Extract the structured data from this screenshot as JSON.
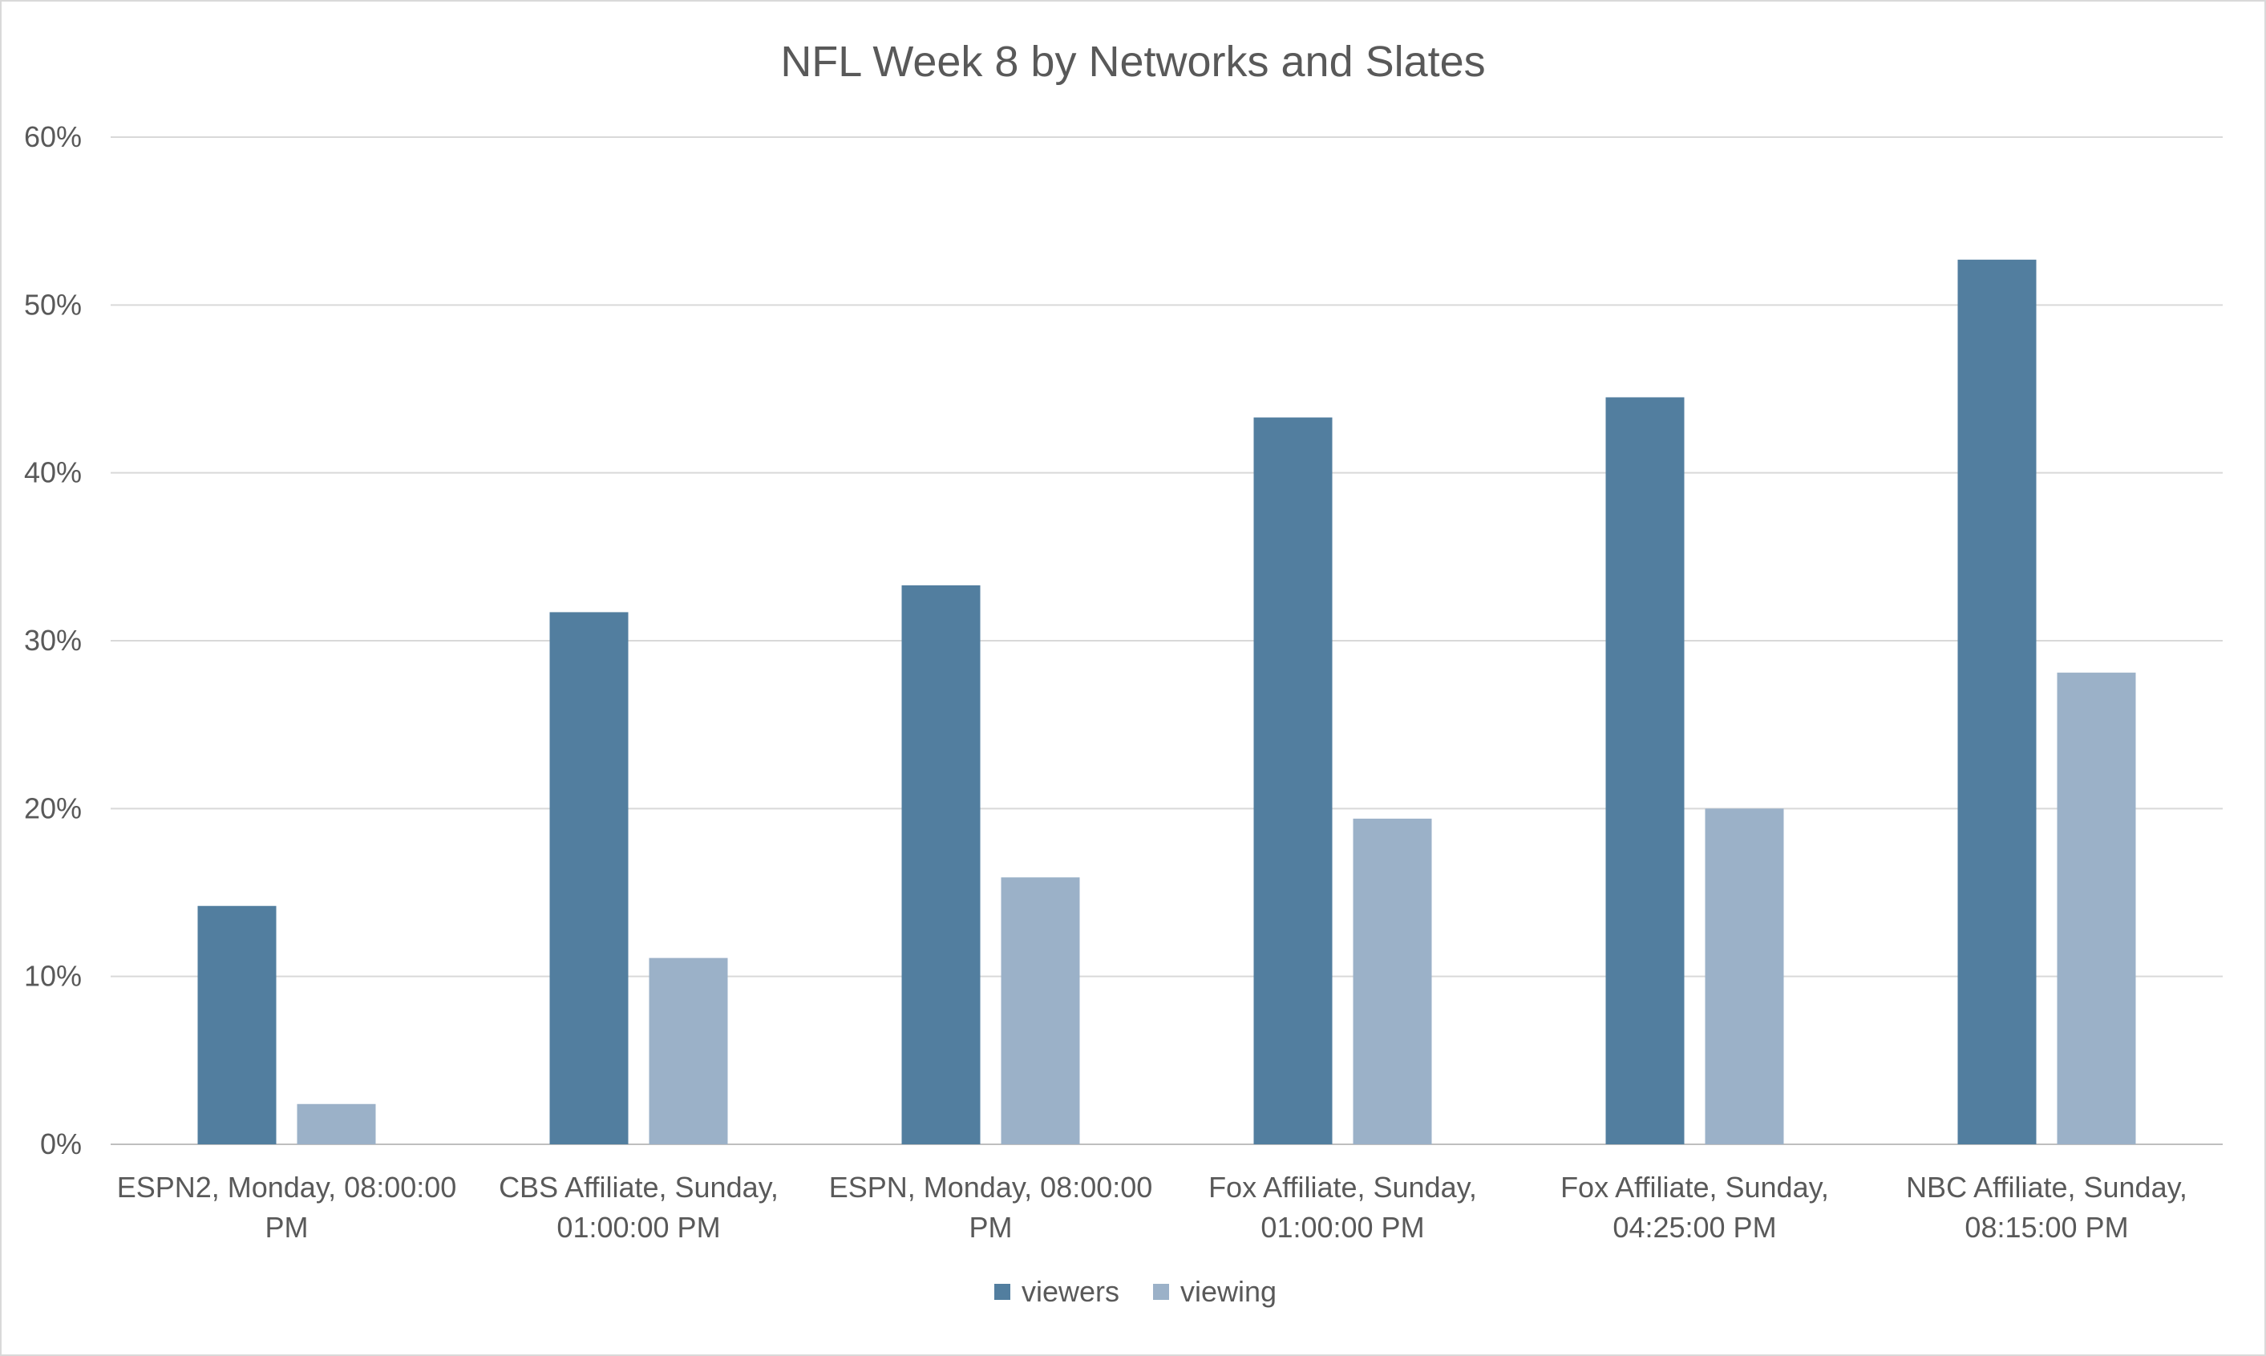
{
  "chart_data": {
    "type": "bar",
    "title": "NFL Week 8 by Networks and Slates",
    "xlabel": "",
    "ylabel": "",
    "ylim": [
      0,
      0.6
    ],
    "y_ticks": [
      0,
      0.1,
      0.2,
      0.3,
      0.4,
      0.5,
      0.6
    ],
    "y_tick_labels": [
      "0%",
      "10%",
      "20%",
      "30%",
      "40%",
      "50%",
      "60%"
    ],
    "grid": true,
    "legend_position": "bottom",
    "categories": [
      [
        "ESPN2, Monday, 08:00:00",
        "PM"
      ],
      [
        "CBS Affiliate, Sunday,",
        "01:00:00 PM"
      ],
      [
        "ESPN, Monday, 08:00:00",
        "PM"
      ],
      [
        "Fox Affiliate, Sunday,",
        "01:00:00 PM"
      ],
      [
        "Fox Affiliate, Sunday,",
        "04:25:00 PM"
      ],
      [
        "NBC Affiliate, Sunday,",
        "08:15:00 PM"
      ]
    ],
    "series": [
      {
        "name": "viewers",
        "color": "#527e9f",
        "values": [
          0.142,
          0.317,
          0.333,
          0.433,
          0.445,
          0.527
        ]
      },
      {
        "name": "viewing",
        "color": "#9bb1c8",
        "values": [
          0.024,
          0.111,
          0.159,
          0.194,
          0.2,
          0.281
        ]
      }
    ]
  }
}
